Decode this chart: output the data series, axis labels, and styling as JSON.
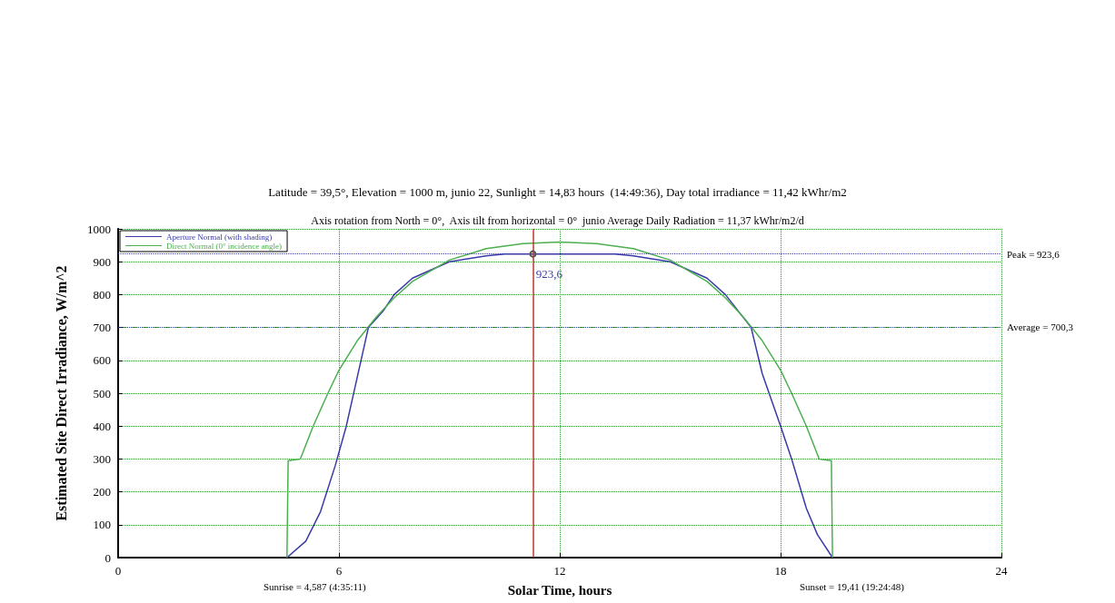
{
  "chart_data": {
    "type": "line",
    "title": "Latitude = 39,5°, Elevation = 1000 m, junio 22, Sunlight = 14,83 hours  (14:49:36), Day total irradiance = 11,42 kWhr/m2",
    "subtitle": "Axis rotation from North = 0°,  Axis tilt from horizontal = 0°  junio Average Daily Radiation = 11,37 kWhr/m2/d",
    "xlabel": "Solar Time, hours",
    "ylabel": "Estimated Site Direct Irradiance, W/m^2",
    "series": [
      {
        "name": "Aperture Normal (with shading)",
        "color": "#3a3aa8",
        "x": [
          4.587,
          5.1,
          5.5,
          5.9,
          6.2,
          6.5,
          6.8,
          7.2,
          7.5,
          8,
          9,
          10,
          10.5,
          11.27,
          13.5,
          14,
          15,
          16,
          16.5,
          17.2,
          17.5,
          18,
          18.3,
          18.7,
          19,
          19.41
        ],
        "values": [
          0,
          50,
          140,
          280,
          400,
          550,
          700,
          750,
          800,
          850,
          900,
          918,
          923.6,
          923.6,
          923.6,
          918,
          900,
          850,
          800,
          700,
          560,
          400,
          300,
          150,
          70,
          0
        ]
      },
      {
        "name": "Direct Normal (0° incidence angle)",
        "color": "#4caf50",
        "x": [
          4.587,
          4.62,
          4.95,
          5.3,
          5.7,
          6,
          6.5,
          7,
          7.5,
          8,
          9,
          10,
          11,
          12,
          13,
          14,
          15,
          16,
          16.5,
          17,
          17.5,
          18,
          18.3,
          18.7,
          19.05,
          19.38,
          19.41
        ],
        "values": [
          0,
          295,
          300,
          400,
          500,
          570,
          660,
          730,
          790,
          840,
          905,
          940,
          955,
          960,
          955,
          940,
          905,
          840,
          790,
          730,
          660,
          570,
          500,
          400,
          300,
          295,
          0
        ]
      }
    ],
    "annotations": [
      {
        "text": "923,6",
        "x": 11.27,
        "y": 923.6
      },
      "Sunrise = 4,587 (4:35:11)",
      "Sunset = 19,41 (19:24:48)"
    ],
    "ref_lines": [
      {
        "axis": "y",
        "value": 923.6,
        "label": "Peak = 923,6",
        "color": "#3a3aa8",
        "line_style": "dotted"
      },
      {
        "axis": "y",
        "value": 700.3,
        "label": "Average = 700,3",
        "color": "#3a3aa8",
        "line_style": "dotted"
      },
      {
        "axis": "x",
        "value": 11.27,
        "label": null,
        "color": "#c0392b",
        "line_style": "solid"
      }
    ],
    "xlim": [
      0,
      24
    ],
    "xticks": [
      0,
      6,
      12,
      18,
      24
    ],
    "ylim": [
      0,
      1000
    ],
    "yticks": [
      0,
      100,
      200,
      300,
      400,
      500,
      600,
      700,
      800,
      900,
      1000
    ],
    "grid": true,
    "legend": "top left",
    "marker": "none",
    "line_style": "solid"
  }
}
